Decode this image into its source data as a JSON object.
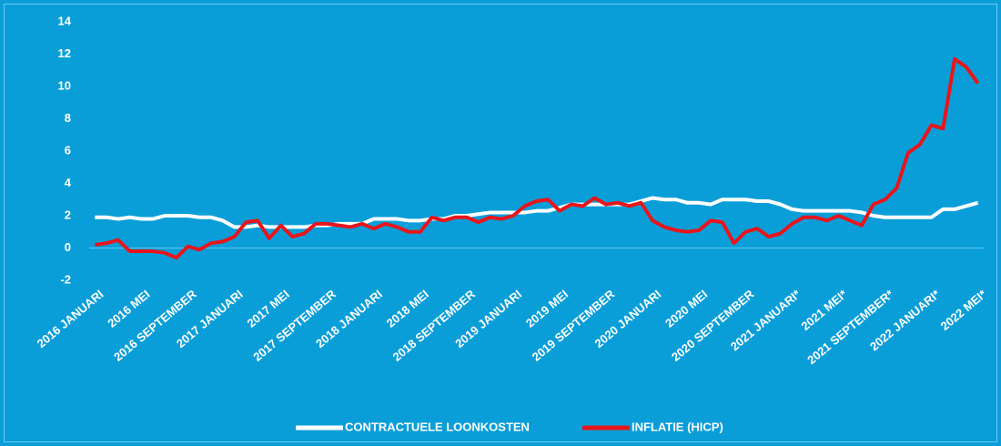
{
  "chart_data": {
    "type": "line",
    "categories": [
      "2016 JANUARI",
      null,
      null,
      null,
      "2016 MEI",
      null,
      null,
      null,
      "2016 SEPTEMBER",
      null,
      null,
      null,
      "2017 JANUARI",
      null,
      null,
      null,
      "2017 MEI",
      null,
      null,
      null,
      "2017 SEPTEMBER",
      null,
      null,
      null,
      "2018 JANUARI",
      null,
      null,
      null,
      "2018 MEI",
      null,
      null,
      null,
      "2018 SEPTEMBER",
      null,
      null,
      null,
      "2019 JANUARI",
      null,
      null,
      null,
      "2019 MEI",
      null,
      null,
      null,
      "2019 SEPTEMBER",
      null,
      null,
      null,
      "2020 JANUARI",
      null,
      null,
      null,
      "2020 MEI",
      null,
      null,
      null,
      "2020 SEPTEMBER",
      null,
      null,
      null,
      "2021 JANUARI*",
      null,
      null,
      null,
      "2021 MEI*",
      null,
      null,
      null,
      "2021 SEPTEMBER*",
      null,
      null,
      null,
      "2022 JANUARI*",
      null,
      null,
      null,
      "2022 MEI*"
    ],
    "series": [
      {
        "name": "CONTRACTUELE LOONKOSTEN",
        "color": "#ffffff",
        "values": [
          1.9,
          1.9,
          1.8,
          1.9,
          1.8,
          1.8,
          2.0,
          2.0,
          2.0,
          1.9,
          1.9,
          1.7,
          1.3,
          1.3,
          1.4,
          1.3,
          1.3,
          1.3,
          1.3,
          1.4,
          1.4,
          1.5,
          1.5,
          1.5,
          1.8,
          1.8,
          1.8,
          1.7,
          1.7,
          1.8,
          1.8,
          2.0,
          2.0,
          2.1,
          2.2,
          2.2,
          2.2,
          2.2,
          2.3,
          2.3,
          2.5,
          2.7,
          2.7,
          2.7,
          2.7,
          2.7,
          2.7,
          2.9,
          3.1,
          3.0,
          3.0,
          2.8,
          2.8,
          2.7,
          3.0,
          3.0,
          3.0,
          2.9,
          2.9,
          2.7,
          2.4,
          2.3,
          2.3,
          2.3,
          2.3,
          2.3,
          2.2,
          2.0,
          1.9,
          1.9,
          1.9,
          1.9,
          1.9,
          2.4,
          2.4,
          2.6,
          2.8
        ]
      },
      {
        "name": "INFLATIE (HICP)",
        "color": "#e8151b",
        "values": [
          0.2,
          0.3,
          0.5,
          -0.2,
          -0.2,
          -0.2,
          -0.3,
          -0.6,
          0.1,
          -0.1,
          0.3,
          0.4,
          0.7,
          1.6,
          1.7,
          0.6,
          1.4,
          0.7,
          0.9,
          1.5,
          1.5,
          1.4,
          1.3,
          1.5,
          1.2,
          1.5,
          1.3,
          1.0,
          1.0,
          1.9,
          1.7,
          1.9,
          1.9,
          1.6,
          1.9,
          1.8,
          2.0,
          2.6,
          2.9,
          3.0,
          2.3,
          2.7,
          2.6,
          3.1,
          2.7,
          2.8,
          2.6,
          2.8,
          1.7,
          1.3,
          1.1,
          1.0,
          1.1,
          1.7,
          1.6,
          0.3,
          1.0,
          1.2,
          0.7,
          0.9,
          1.5,
          1.9,
          1.9,
          1.7,
          2.0,
          1.7,
          1.4,
          2.7,
          3.0,
          3.7,
          5.9,
          6.4,
          7.6,
          7.4,
          11.7,
          11.2,
          10.2
        ]
      }
    ],
    "ylim": [
      -2,
      14
    ],
    "yticks": [
      -2,
      0,
      2,
      4,
      6,
      8,
      10,
      12,
      14
    ],
    "grid": false,
    "legend": "bottom"
  }
}
